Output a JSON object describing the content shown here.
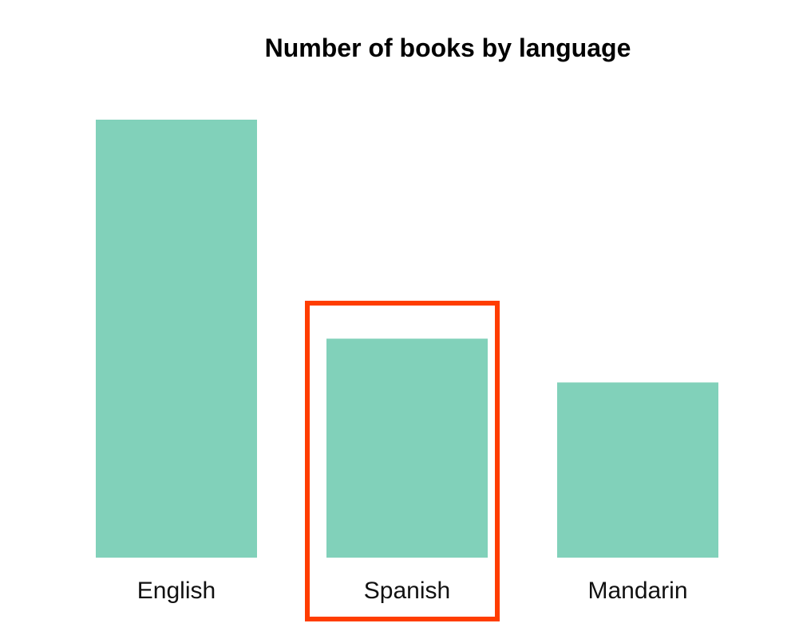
{
  "chart_data": {
    "type": "bar",
    "title": "Number of books by language",
    "categories": [
      "English",
      "Spanish",
      "Mandarin"
    ],
    "values": [
      100,
      50,
      40
    ],
    "ylim": [
      0,
      100
    ],
    "xlabel": "",
    "ylabel": "",
    "grid": false,
    "bar_color": "#81d1ba",
    "highlight": {
      "category": "Spanish",
      "color": "#ff3d00"
    }
  }
}
